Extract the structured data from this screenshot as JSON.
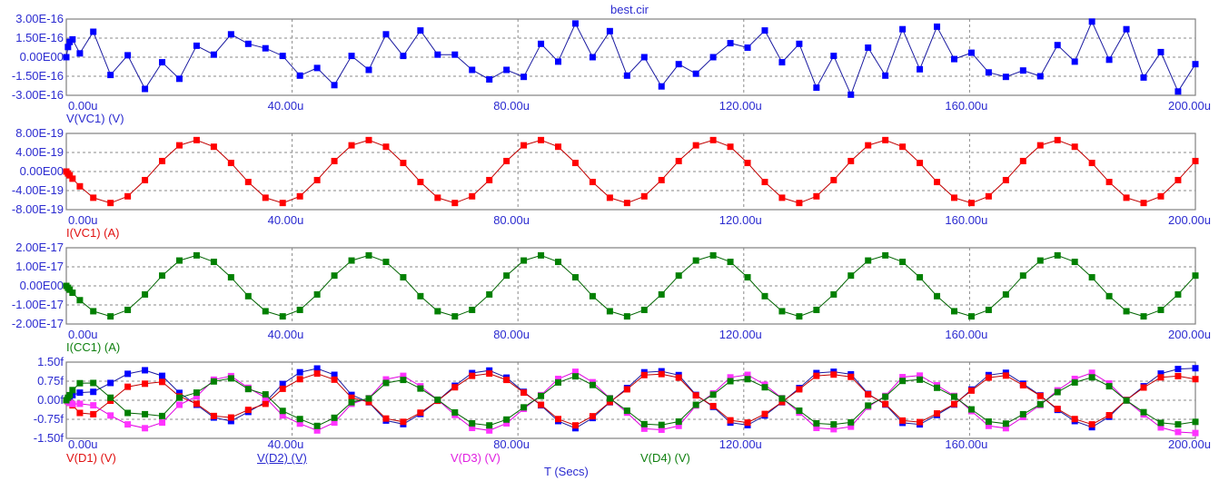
{
  "title": "best.cir",
  "x_axis": {
    "label": "T (Secs)",
    "ticks": [
      "0.00u",
      "40.00u",
      "80.00u",
      "120.00u",
      "160.00u",
      "200.00u"
    ]
  },
  "colors": {
    "axis_text": "#2b2bd0",
    "grid": "#8a8a8a",
    "frame": "#808080"
  },
  "chart_data": {
    "type": "line",
    "xlim": [
      0,
      200
    ],
    "x_unit": "us",
    "x": [
      0,
      0.3,
      0.6,
      1.1,
      2.4,
      4.78,
      7.83,
      10.88,
      13.93,
      16.98,
      20.03,
      23.08,
      26.13,
      29.18,
      32.23,
      35.28,
      38.33,
      41.38,
      44.43,
      47.48,
      50.53,
      53.58,
      56.63,
      59.68,
      62.73,
      65.78,
      68.83,
      71.88,
      74.93,
      77.98,
      81.03,
      84.08,
      87.13,
      90.18,
      93.23,
      96.28,
      99.33,
      102.38,
      105.43,
      108.48,
      111.53,
      114.58,
      117.63,
      120.68,
      123.73,
      126.78,
      129.83,
      132.88,
      135.93,
      138.98,
      142.03,
      145.08,
      148.13,
      151.18,
      154.23,
      157.28,
      160.33,
      163.38,
      166.43,
      169.48,
      172.53,
      175.58,
      178.63,
      181.68,
      184.73,
      187.78,
      190.83,
      193.88,
      196.93,
      200
    ],
    "panels": [
      {
        "ylim": [
          -3,
          3
        ],
        "y_multiplier": 1e-16,
        "yticks": [
          "3.00E-16",
          "1.50E-16",
          "0.00E00",
          "-1.50E-16",
          "-3.00E-16"
        ],
        "series": [
          {
            "name": "V(VC1) (V)",
            "line": "#1a1aa0",
            "marker": "#0000ff",
            "y": [
              0,
              0.8,
              1.2,
              1.4,
              0.3,
              2.0,
              -1.4,
              0.15,
              -2.5,
              -0.4,
              -1.7,
              0.9,
              0.2,
              1.8,
              1.05,
              0.7,
              0.1,
              -1.45,
              -0.85,
              -2.2,
              0.1,
              -1.0,
              1.8,
              0.1,
              2.1,
              0.2,
              0.2,
              -1.0,
              -1.75,
              -1.0,
              -1.55,
              1.05,
              -0.35,
              2.65,
              0.0,
              2.05,
              -1.45,
              0.0,
              -2.3,
              -0.55,
              -1.3,
              0.0,
              1.1,
              0.75,
              2.1,
              -0.4,
              1.05,
              -2.4,
              0.1,
              -2.95,
              0.75,
              -1.45,
              2.2,
              -0.95,
              2.4,
              -0.15,
              0.35,
              -1.2,
              -1.55,
              -1.05,
              -1.5,
              0.95,
              -0.35,
              2.8,
              -0.2,
              2.2,
              -1.6,
              0.4,
              -2.7,
              -0.55
            ]
          }
        ]
      },
      {
        "ylim": [
          -8,
          8
        ],
        "y_multiplier": 1e-19,
        "yticks": [
          "8.00E-19",
          "4.00E-19",
          "0.00E00",
          "-4.00E-19",
          "-8.00E-19"
        ],
        "series": [
          {
            "name": "I(VC1) (A)",
            "line": "#c00000",
            "marker": "#ff0000",
            "y": [
              0,
              -0.4,
              -0.8,
              -1.5,
              -3.1,
              -5.5,
              -6.6,
              -5.2,
              -1.8,
              2.2,
              5.5,
              6.6,
              5.2,
              1.8,
              -2.2,
              -5.5,
              -6.6,
              -5.2,
              -1.8,
              2.2,
              5.5,
              6.6,
              5.2,
              1.8,
              -2.2,
              -5.5,
              -6.6,
              -5.2,
              -1.8,
              2.2,
              5.5,
              6.6,
              5.2,
              1.8,
              -2.2,
              -5.5,
              -6.6,
              -5.2,
              -1.8,
              2.2,
              5.5,
              6.6,
              5.2,
              1.8,
              -2.2,
              -5.5,
              -6.6,
              -5.2,
              -1.8,
              2.2,
              5.5,
              6.6,
              5.2,
              1.8,
              -2.2,
              -5.5,
              -6.6,
              -5.2,
              -1.8,
              2.2,
              5.5,
              6.6,
              5.2,
              1.8,
              -2.2,
              -5.5,
              -6.6,
              -5.2,
              -1.8,
              2.2
            ]
          }
        ]
      },
      {
        "ylim": [
          -20,
          20
        ],
        "y_multiplier": 1e-18,
        "yticks": [
          "2.00E-17",
          "1.00E-17",
          "0.00E00",
          "-1.00E-17",
          "-2.00E-17"
        ],
        "series": [
          {
            "name": "I(CC1) (A)",
            "line": "#006400",
            "marker": "#008000",
            "y": [
              0,
              -1,
              -2,
              -3.6,
              -7.5,
              -13.3,
              -16,
              -12.6,
              -4.5,
              5.4,
              13.3,
              16,
              12.6,
              4.5,
              -5.4,
              -13.3,
              -16,
              -12.6,
              -4.5,
              5.4,
              13.3,
              16,
              12.6,
              4.5,
              -5.4,
              -13.3,
              -16,
              -12.6,
              -4.5,
              5.4,
              13.3,
              16,
              12.6,
              4.5,
              -5.4,
              -13.3,
              -16,
              -12.6,
              -4.5,
              5.4,
              13.3,
              16,
              12.6,
              4.5,
              -5.4,
              -13.3,
              -16,
              -12.6,
              -4.5,
              5.4,
              13.3,
              16,
              12.6,
              4.5,
              -5.4,
              -13.3,
              -16,
              -12.6,
              -4.5,
              5.4,
              13.3,
              16,
              12.6,
              4.5,
              -5.4,
              -13.3,
              -16,
              -12.6,
              -4.5,
              5.4
            ]
          }
        ]
      },
      {
        "ylim": [
          -1.5,
          1.5
        ],
        "y_multiplier": 1e-15,
        "yticks": [
          "1.50f",
          "0.75f",
          "0.00f",
          "-0.75f",
          "-1.50f"
        ],
        "series": [
          {
            "name": "V(D2) (V)",
            "line": "#1a1aa0",
            "marker": "#0000ff",
            "y": [
              0,
              0.05,
              0.1,
              0.2,
              0.3,
              0.33,
              0.68,
              1.04,
              1.18,
              0.96,
              0.29,
              -0.18,
              -0.68,
              -0.82,
              -0.46,
              -0.07,
              0.64,
              1.1,
              1.25,
              1.0,
              0.21,
              -0.08,
              -0.8,
              -0.94,
              -0.54,
              -0.02,
              0.57,
              1.07,
              1.17,
              0.89,
              0.33,
              -0.2,
              -0.82,
              -1.1,
              -0.7,
              -0.08,
              0.48,
              1.1,
              1.14,
              0.99,
              0.21,
              -0.26,
              -0.88,
              -0.98,
              -0.6,
              -0.08,
              0.48,
              1.07,
              1.12,
              1.02,
              0.25,
              -0.17,
              -0.89,
              -0.95,
              -0.58,
              -0.17,
              0.42,
              0.99,
              1.08,
              0.65,
              0.19,
              -0.38,
              -0.82,
              -1.06,
              -0.65,
              0.01,
              0.55,
              1.05,
              1.23,
              1.26
            ]
          },
          {
            "name": "V(D1) (V)",
            "line": "#c00000",
            "marker": "#ff0000",
            "y": [
              0,
              -0.05,
              -0.1,
              -0.2,
              -0.5,
              -0.55,
              -0.02,
              0.53,
              0.65,
              0.72,
              0.15,
              -0.14,
              -0.62,
              -0.68,
              -0.38,
              -0.14,
              0.45,
              0.83,
              1.05,
              0.81,
              0.1,
              -0.07,
              -0.72,
              -0.85,
              -0.49,
              -0.02,
              0.51,
              0.96,
              1.05,
              0.8,
              0.3,
              -0.18,
              -0.74,
              -0.99,
              -0.63,
              -0.07,
              0.43,
              0.99,
              1.03,
              0.89,
              0.19,
              -0.23,
              -0.79,
              -0.88,
              -0.54,
              -0.07,
              0.43,
              0.96,
              1.01,
              0.92,
              0.23,
              -0.15,
              -0.8,
              -0.86,
              -0.52,
              -0.15,
              0.38,
              0.89,
              0.97,
              0.59,
              0.17,
              -0.34,
              -0.74,
              -0.95,
              -0.59,
              0.01,
              0.5,
              0.9,
              0.95,
              0.83
            ]
          },
          {
            "name": "V(D3) (V)",
            "line": "#e000e0",
            "marker": "#ff33ff",
            "y": [
              0,
              -0.05,
              -0.1,
              -0.15,
              -0.14,
              -0.2,
              -0.6,
              -0.95,
              -1.1,
              -0.88,
              -0.18,
              0.15,
              0.81,
              0.95,
              0.49,
              0.1,
              -0.6,
              -0.92,
              -1.19,
              -0.88,
              -0.14,
              0.08,
              0.82,
              0.96,
              0.55,
              0.02,
              -0.58,
              -1.09,
              -1.19,
              -0.91,
              -0.34,
              0.2,
              0.84,
              1.12,
              0.71,
              0.08,
              -0.49,
              -1.12,
              -1.16,
              -1.01,
              -0.21,
              0.27,
              0.9,
              1.0,
              0.61,
              0.08,
              -0.49,
              -1.09,
              -1.14,
              -1.04,
              -0.26,
              0.17,
              0.91,
              0.97,
              0.59,
              0.17,
              -0.43,
              -1.01,
              -1.1,
              -0.66,
              -0.19,
              0.39,
              0.84,
              1.08,
              0.66,
              -0.01,
              -0.56,
              -1.07,
              -1.25,
              -1.29
            ]
          },
          {
            "name": "V(D4) (V)",
            "line": "#006400",
            "marker": "#008000",
            "y": [
              0,
              0.1,
              0.2,
              0.4,
              0.67,
              0.68,
              0.1,
              -0.5,
              -0.55,
              -0.62,
              0.1,
              0.3,
              0.74,
              0.86,
              0.44,
              0.23,
              -0.42,
              -0.74,
              -1.01,
              -0.69,
              -0.08,
              0.07,
              0.68,
              0.8,
              0.46,
              0.02,
              -0.48,
              -0.91,
              -0.99,
              -0.76,
              -0.28,
              0.17,
              0.7,
              0.94,
              0.6,
              0.07,
              -0.41,
              -0.94,
              -0.97,
              -0.84,
              -0.18,
              0.22,
              0.75,
              0.83,
              0.51,
              0.07,
              -0.41,
              -0.91,
              -0.95,
              -0.87,
              -0.21,
              0.14,
              0.76,
              0.81,
              0.49,
              0.14,
              -0.36,
              -0.84,
              -0.92,
              -0.55,
              -0.16,
              0.32,
              0.7,
              0.9,
              0.55,
              -0.01,
              -0.47,
              -0.89,
              -0.95,
              -0.85
            ]
          }
        ]
      }
    ]
  }
}
